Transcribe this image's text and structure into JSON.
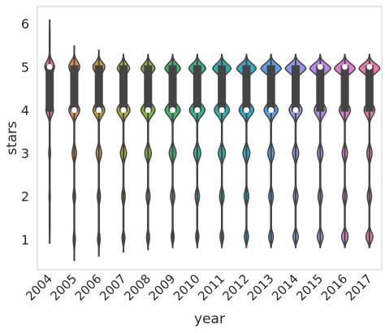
{
  "chart_data": {
    "type": "violin",
    "xlabel": "year",
    "ylabel": "stars",
    "categories": [
      "2004",
      "2005",
      "2006",
      "2007",
      "2008",
      "2009",
      "2010",
      "2011",
      "2012",
      "2013",
      "2014",
      "2015",
      "2016",
      "2017"
    ],
    "yticks": [
      1,
      2,
      3,
      4,
      5,
      6
    ],
    "ylim": [
      0.3,
      6.4
    ],
    "grid": false,
    "series": [
      {
        "category": "2004",
        "color": "#e8737b",
        "min": 0.9,
        "max": 6.1,
        "q1": 4.0,
        "median": 5.0,
        "q3": 5.0,
        "density": {
          "1": 0.05,
          "2": 0.06,
          "3": 0.08,
          "4": 0.35,
          "5": 0.45
        }
      },
      {
        "category": "2005",
        "color": "#e5895a",
        "min": 0.5,
        "max": 5.5,
        "q1": 4.0,
        "median": 4.0,
        "q3": 5.0,
        "density": {
          "1": 0.1,
          "2": 0.12,
          "3": 0.2,
          "4": 0.5,
          "5": 0.5
        }
      },
      {
        "category": "2006",
        "color": "#c9a040",
        "min": 0.6,
        "max": 5.4,
        "q1": 4.0,
        "median": 4.0,
        "q3": 5.0,
        "density": {
          "1": 0.12,
          "2": 0.14,
          "3": 0.25,
          "4": 0.55,
          "5": 0.55
        }
      },
      {
        "category": "2007",
        "color": "#a8ab3c",
        "min": 0.7,
        "max": 5.3,
        "q1": 4.0,
        "median": 4.0,
        "q3": 5.0,
        "density": {
          "1": 0.15,
          "2": 0.16,
          "3": 0.28,
          "4": 0.6,
          "5": 0.62
        }
      },
      {
        "category": "2008",
        "color": "#7fb43e",
        "min": 0.75,
        "max": 5.3,
        "q1": 4.0,
        "median": 4.0,
        "q3": 5.0,
        "density": {
          "1": 0.18,
          "2": 0.18,
          "3": 0.3,
          "4": 0.65,
          "5": 0.7
        }
      },
      {
        "category": "2009",
        "color": "#44b068",
        "min": 0.8,
        "max": 5.3,
        "q1": 4.0,
        "median": 4.0,
        "q3": 5.0,
        "density": {
          "1": 0.2,
          "2": 0.2,
          "3": 0.32,
          "4": 0.7,
          "5": 0.78
        }
      },
      {
        "category": "2010",
        "color": "#3bae92",
        "min": 0.8,
        "max": 5.3,
        "q1": 4.0,
        "median": 4.0,
        "q3": 5.0,
        "density": {
          "1": 0.22,
          "2": 0.2,
          "3": 0.33,
          "4": 0.72,
          "5": 0.85
        }
      },
      {
        "category": "2011",
        "color": "#38aaab",
        "min": 0.8,
        "max": 5.3,
        "q1": 4.0,
        "median": 4.0,
        "q3": 5.0,
        "density": {
          "1": 0.25,
          "2": 0.21,
          "3": 0.33,
          "4": 0.7,
          "5": 0.92
        }
      },
      {
        "category": "2012",
        "color": "#3ba6c2",
        "min": 0.8,
        "max": 5.3,
        "q1": 4.0,
        "median": 4.0,
        "q3": 5.0,
        "density": {
          "1": 0.28,
          "2": 0.21,
          "3": 0.32,
          "4": 0.68,
          "5": 0.98
        }
      },
      {
        "category": "2013",
        "color": "#5ba0e0",
        "min": 0.8,
        "max": 5.3,
        "q1": 4.0,
        "median": 4.0,
        "q3": 5.0,
        "density": {
          "1": 0.32,
          "2": 0.21,
          "3": 0.3,
          "4": 0.64,
          "5": 1.02
        }
      },
      {
        "category": "2014",
        "color": "#8f96e8",
        "min": 0.8,
        "max": 5.3,
        "q1": 4.0,
        "median": 4.0,
        "q3": 5.0,
        "density": {
          "1": 0.36,
          "2": 0.21,
          "3": 0.28,
          "4": 0.6,
          "5": 1.04
        }
      },
      {
        "category": "2015",
        "color": "#b98ae6",
        "min": 0.8,
        "max": 5.3,
        "q1": 4.0,
        "median": 5.0,
        "q3": 5.0,
        "density": {
          "1": 0.4,
          "2": 0.2,
          "3": 0.26,
          "4": 0.56,
          "5": 1.05
        }
      },
      {
        "category": "2016",
        "color": "#de7fd2",
        "min": 0.8,
        "max": 5.3,
        "q1": 4.0,
        "median": 5.0,
        "q3": 5.0,
        "density": {
          "1": 0.45,
          "2": 0.2,
          "3": 0.25,
          "4": 0.52,
          "5": 1.05
        }
      },
      {
        "category": "2017",
        "color": "#e87aa6",
        "min": 0.8,
        "max": 5.3,
        "q1": 4.0,
        "median": 5.0,
        "q3": 5.0,
        "density": {
          "1": 0.48,
          "2": 0.2,
          "3": 0.24,
          "4": 0.5,
          "5": 1.05
        }
      }
    ]
  }
}
